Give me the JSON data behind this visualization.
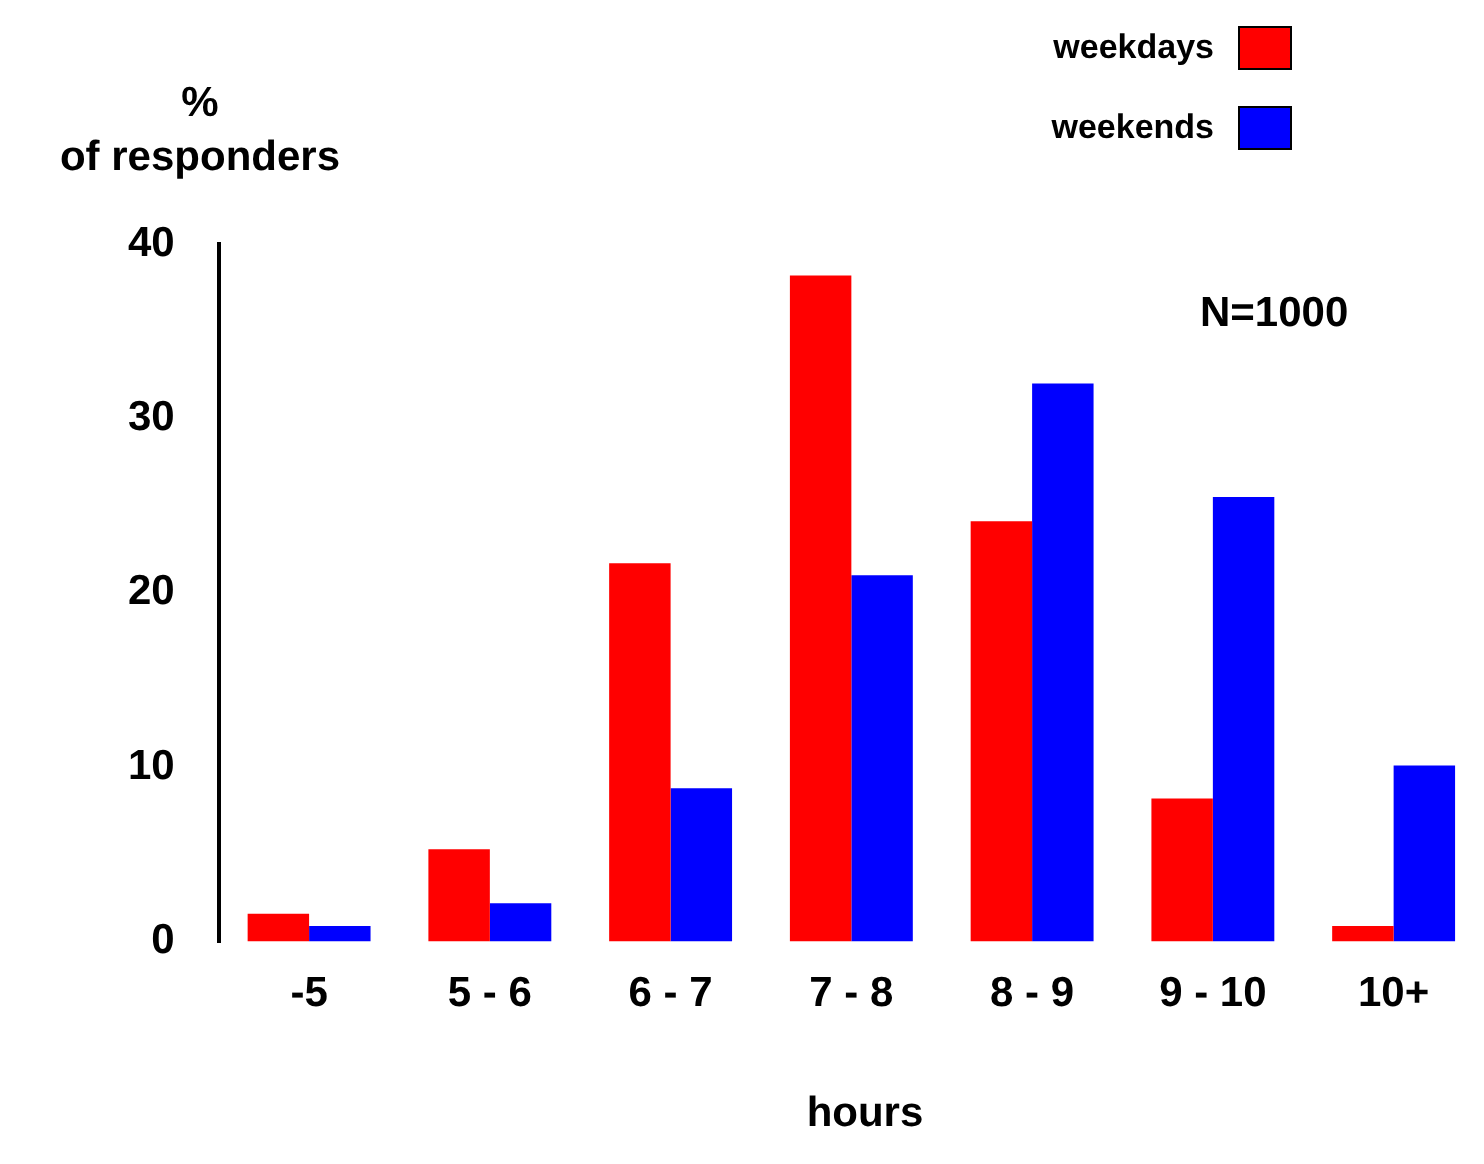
{
  "chart_data": {
    "type": "bar",
    "ylabel": "%\nof responders",
    "xlabel": "hours",
    "categories": [
      "-5",
      "5 - 6",
      "6 - 7",
      "7 - 8",
      "8 - 9",
      "9 - 10",
      "10+"
    ],
    "series": [
      {
        "name": "weekdays",
        "color": "#ff0000",
        "values": [
          1.6,
          5.3,
          21.7,
          38.2,
          24.1,
          8.2,
          0.9
        ]
      },
      {
        "name": "weekends",
        "color": "#0000ff",
        "values": [
          0.9,
          2.2,
          8.8,
          21.0,
          32.0,
          25.5,
          10.1
        ]
      }
    ],
    "ylim": [
      0,
      40
    ],
    "yticks": [
      0,
      10,
      20,
      30,
      40
    ],
    "grid": false,
    "legend": "top right",
    "annotations": [
      {
        "text": "N=1000"
      }
    ]
  }
}
